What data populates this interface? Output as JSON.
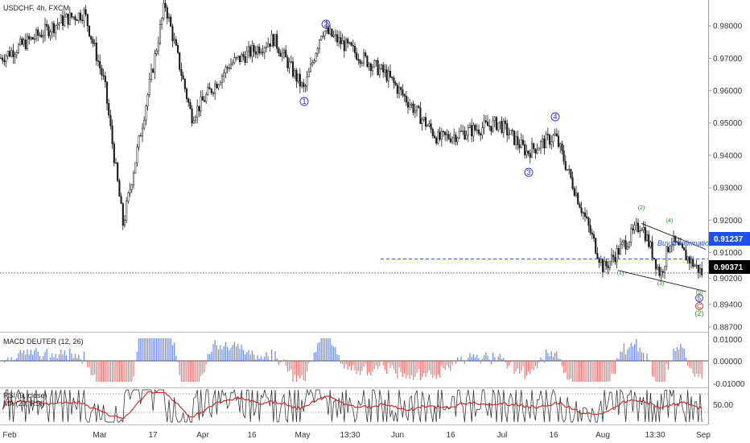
{
  "symbol_title": "USDCHF, 4h, FXCM",
  "price_axis_labels": [
    "0.98000",
    "0.97000",
    "0.96000",
    "0.95000",
    "0.94000",
    "0.93000",
    "0.92000",
    "0.91000",
    "0.90200",
    "0.89400",
    "0.88700"
  ],
  "price_badges": {
    "upper": "0.91237",
    "lower": "0.90371",
    "upper_color": "#1e50e6",
    "lower_color": "#000000"
  },
  "time_labels": [
    "Feb",
    "Mar",
    "17",
    "Apr",
    "16",
    "May",
    "13:30",
    "Jun",
    "16",
    "Jul",
    "16",
    "Aug",
    "13:30",
    "Sep"
  ],
  "annotations": {
    "buy_confirmation": "Buy Confirmation",
    "primary_waves": [
      "1",
      "2",
      "3",
      "4"
    ],
    "minor_waves": [
      "(1)",
      "(2)",
      "(3)",
      "(4)",
      "(5)"
    ],
    "final_labels": [
      "5",
      "C",
      "(2)"
    ],
    "primary_color": "#2a2ad0",
    "minor_color": "#2a8a2a",
    "c_color": "#cc2222"
  },
  "macd_panel": {
    "title": "MACD DEUTER (12, 26)",
    "labels": [
      "0.01000",
      "0.00000",
      "-0.01000"
    ],
    "pos_color": "#4a6ae0",
    "neg_color": "#e05a5a"
  },
  "rsi_panel": {
    "title": "RSI (9, close)",
    "ma_title": "MA (20, RSI)",
    "labels": [
      "50.00"
    ],
    "rsi_color": "#222222",
    "ma_color": "#cc2222"
  },
  "chart_data": {
    "type": "candlestick",
    "title": "USDCHF, 4h, FXCM",
    "y_range": [
      0.886,
      0.988
    ],
    "x_ticks": [
      "Feb",
      "Mar",
      "17",
      "Apr",
      "16",
      "May",
      "13:30",
      "Jun",
      "16",
      "Jul",
      "16",
      "Aug",
      "13:30",
      "Sep"
    ],
    "close_path": [
      {
        "t": "Feb",
        "price": 0.97
      },
      {
        "t": "early Feb",
        "price": 0.976
      },
      {
        "t": "mid Feb",
        "price": 0.982
      },
      {
        "t": "late Feb",
        "price": 0.984
      },
      {
        "t": "early Mar",
        "price": 0.962
      },
      {
        "t": "mid Mar low",
        "price": 0.9185
      },
      {
        "t": "17 Mar high",
        "price": 0.987
      },
      {
        "t": "Apr",
        "price": 0.952
      },
      {
        "t": "16 Apr",
        "price": 0.968
      },
      {
        "t": "late Apr",
        "price": 0.976
      },
      {
        "t": "May wave 1",
        "price": 0.96
      },
      {
        "t": "May wave 2",
        "price": 0.979
      },
      {
        "t": "Jun",
        "price": 0.965
      },
      {
        "t": "mid Jun",
        "price": 0.945
      },
      {
        "t": "Jul",
        "price": 0.95
      },
      {
        "t": "Jul wave 3",
        "price": 0.941
      },
      {
        "t": "16 Jul wave 4",
        "price": 0.946
      },
      {
        "t": "Aug wave (1)",
        "price": 0.905
      },
      {
        "t": "Aug wave (2)",
        "price": 0.919
      },
      {
        "t": "13:30 wave (3)",
        "price": 0.903
      },
      {
        "t": "wave (4)",
        "price": 0.914
      },
      {
        "t": "Sep",
        "price": 0.9037
      }
    ],
    "horizontal_lines": [
      {
        "label": "Buy Confirmation",
        "price": 0.908,
        "style": "dashed",
        "color": "#1e50e6"
      },
      {
        "label": "last price",
        "price": 0.9037,
        "style": "dotted",
        "color": "#555555"
      }
    ],
    "channel": {
      "upper": [
        [
          0.919,
          "Aug (2)"
        ],
        [
          0.911,
          "Sep"
        ]
      ],
      "lower": [
        [
          0.9045,
          "Aug (1)"
        ],
        [
          0.898,
          "Sep"
        ]
      ]
    },
    "last_price": 0.90371,
    "marker_price": 0.91237
  }
}
